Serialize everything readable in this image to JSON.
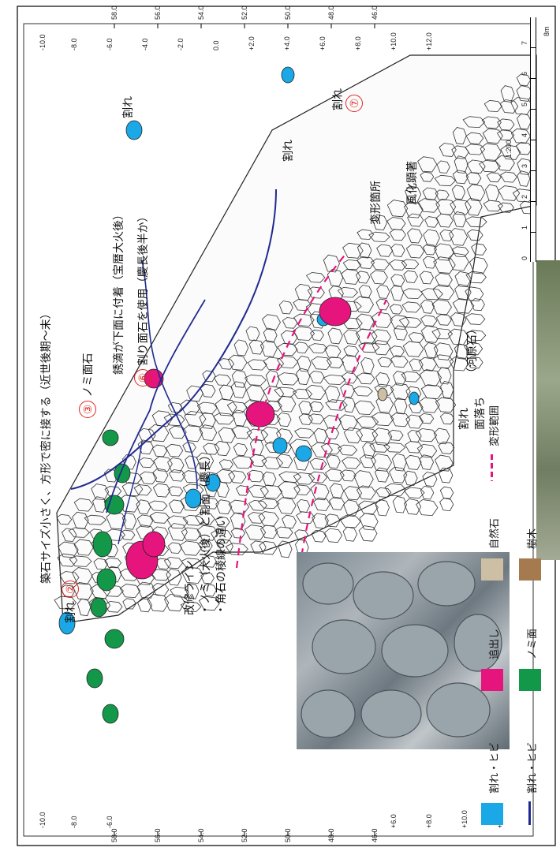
{
  "frame": {
    "border_color": "#000000"
  },
  "grid": {
    "x_ticks_top": [
      "-10.0",
      "-8.0",
      "-6.0",
      "-4.0",
      "-2.0",
      "0.0",
      "+2.0",
      "+4.0",
      "+6.0",
      "+8.0",
      "+10.0",
      "+12.0"
    ],
    "x_ticks_bottom": [
      "-10.0",
      "-8.0",
      "-6.0",
      "+6.0",
      "+8.0",
      "+10.0",
      "+12.0"
    ],
    "y_ticks": [
      "58.0",
      "56.0",
      "54.0",
      "52.0",
      "50.0",
      "48.0",
      "46.0"
    ]
  },
  "scale_bar": {
    "ratio": "1:200",
    "unit": "8m",
    "marks": [
      "0",
      "1",
      "2",
      "3",
      "4",
      "5",
      "6",
      "7"
    ]
  },
  "annotations": {
    "crack": "割れ",
    "num2": "②",
    "note_small_stones": "築石サイズ小さく、方形で密に接する（近世後期～末）",
    "num3": "③",
    "nomi_face": "ノミ面石",
    "rust_drip": "銹滴が下面に付着（宝暦大火後）",
    "num6": "⑥",
    "split_face_used": "割り面石を使用（慶長後半か）",
    "crack_far": "割れ",
    "deform_place": "変形箇所",
    "weathering": "風化顕著",
    "crack7": "割れ",
    "num7": "⑦",
    "crack_lower": "割れ",
    "face_fall": "面落ち",
    "river_stone": "（河原石）",
    "repair_line": "改修ライン",
    "repair_item1": "・ノミ（大火後）と割面（慶長）",
    "repair_item2": "・角石の稜線の違い"
  },
  "legend": {
    "items": [
      {
        "label": "割れ・ヒビ",
        "color": "#1aa9e6",
        "kind": "fill"
      },
      {
        "label": "追出し",
        "color": "#e6147d",
        "kind": "fill"
      },
      {
        "label": "自然石",
        "color": "#cdbfa3",
        "kind": "fill"
      },
      {
        "label": "割れ・ヒビ",
        "color": "#1f2a8f",
        "kind": "line"
      },
      {
        "label": "ノミ面",
        "color": "#13984a",
        "kind": "fill"
      },
      {
        "label": "樹木",
        "color": "#a57a4e",
        "kind": "fill"
      },
      {
        "label": "変形範囲",
        "color": "#e6147d",
        "kind": "dash"
      }
    ]
  }
}
